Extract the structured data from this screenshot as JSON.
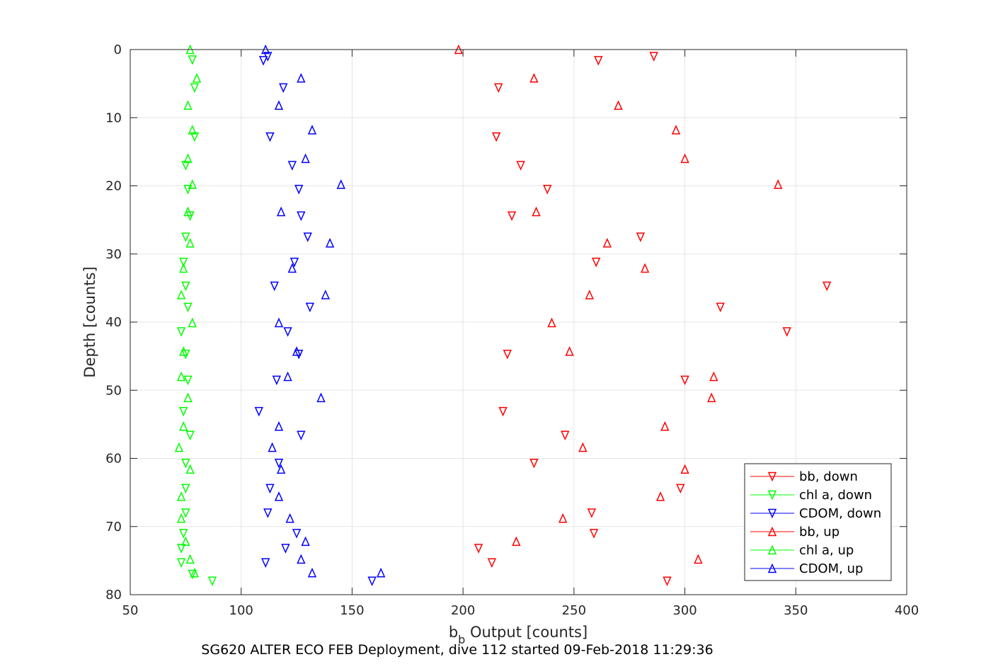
{
  "chart_data": {
    "type": "scatter",
    "x_axis": {
      "label_main": "b",
      "label_sub": "b",
      "label_rest": " Output [counts]",
      "lim": [
        50,
        400
      ],
      "ticks": [
        50,
        100,
        150,
        200,
        250,
        300,
        350,
        400
      ]
    },
    "y_axis": {
      "label": "Depth [counts]",
      "lim": [
        0,
        80
      ],
      "reversed": true,
      "ticks": [
        0,
        10,
        20,
        30,
        40,
        50,
        60,
        70,
        80
      ]
    },
    "caption": "SG620 ALTER ECO FEB Deployment, dive 112 started 09-Feb-2018 11:29:36",
    "grid": true,
    "legend_position": "bottom-right",
    "series": [
      {
        "name": "bb, down",
        "color": "#ff0000",
        "marker": "triangle-down",
        "points": [
          [
            286,
            1
          ],
          [
            261,
            1.6
          ],
          [
            216,
            5.6
          ],
          [
            215,
            12.8
          ],
          [
            226,
            17
          ],
          [
            238,
            20.5
          ],
          [
            222,
            24.4
          ],
          [
            280,
            27.5
          ],
          [
            260,
            31.2
          ],
          [
            364,
            34.7
          ],
          [
            316,
            37.8
          ],
          [
            346,
            41.4
          ],
          [
            220,
            44.7
          ],
          [
            300,
            48.5
          ],
          [
            218,
            53.1
          ],
          [
            246,
            56.6
          ],
          [
            232,
            60.7
          ],
          [
            298,
            64.4
          ],
          [
            258,
            68
          ],
          [
            259,
            71
          ],
          [
            207,
            73.2
          ],
          [
            213,
            75.3
          ],
          [
            292,
            78
          ]
        ]
      },
      {
        "name": "chl a, down",
        "color": "#00ff00",
        "marker": "triangle-down",
        "points": [
          [
            78,
            1.5
          ],
          [
            79,
            5.6
          ],
          [
            79,
            12.8
          ],
          [
            75,
            17
          ],
          [
            76,
            20.5
          ],
          [
            77,
            24.4
          ],
          [
            75,
            27.5
          ],
          [
            74,
            31.2
          ],
          [
            75,
            34.7
          ],
          [
            76,
            37.8
          ],
          [
            73,
            41.4
          ],
          [
            75,
            44.7
          ],
          [
            76,
            48.5
          ],
          [
            74,
            53.1
          ],
          [
            77,
            56.6
          ],
          [
            75,
            60.7
          ],
          [
            75,
            64.4
          ],
          [
            75,
            68
          ],
          [
            74,
            71
          ],
          [
            73,
            73.2
          ],
          [
            73,
            75.3
          ],
          [
            78,
            77
          ],
          [
            87,
            78
          ]
        ]
      },
      {
        "name": "CDOM, down",
        "color": "#0000ff",
        "marker": "triangle-down",
        "points": [
          [
            112,
            1
          ],
          [
            110,
            1.6
          ],
          [
            119,
            5.6
          ],
          [
            113,
            12.8
          ],
          [
            123,
            17
          ],
          [
            126,
            20.5
          ],
          [
            127,
            24.4
          ],
          [
            130,
            27.5
          ],
          [
            124,
            31.2
          ],
          [
            115,
            34.7
          ],
          [
            131,
            37.8
          ],
          [
            121,
            41.4
          ],
          [
            126,
            44.7
          ],
          [
            116,
            48.5
          ],
          [
            108,
            53.1
          ],
          [
            127,
            56.6
          ],
          [
            117,
            60.7
          ],
          [
            113,
            64.4
          ],
          [
            112,
            68
          ],
          [
            125,
            71
          ],
          [
            120,
            73.2
          ],
          [
            111,
            75.3
          ],
          [
            159,
            78
          ]
        ]
      },
      {
        "name": "bb, up",
        "color": "#ff0000",
        "marker": "triangle-up",
        "points": [
          [
            198,
            0
          ],
          [
            232,
            4.2
          ],
          [
            270,
            8.2
          ],
          [
            296,
            11.8
          ],
          [
            300,
            16
          ],
          [
            342,
            19.8
          ],
          [
            233,
            23.8
          ],
          [
            265,
            28.4
          ],
          [
            282,
            32.1
          ],
          [
            257,
            36
          ],
          [
            240,
            40.1
          ],
          [
            248,
            44.3
          ],
          [
            313,
            48
          ],
          [
            312,
            51.1
          ],
          [
            291,
            55.3
          ],
          [
            254,
            58.4
          ],
          [
            300,
            61.6
          ],
          [
            289,
            65.6
          ],
          [
            245,
            68.8
          ],
          [
            224,
            72.2
          ],
          [
            306,
            74.8
          ]
        ]
      },
      {
        "name": "chl a, up",
        "color": "#00ff00",
        "marker": "triangle-up",
        "points": [
          [
            77,
            0
          ],
          [
            80,
            4.2
          ],
          [
            76,
            8.2
          ],
          [
            78,
            11.8
          ],
          [
            76,
            16
          ],
          [
            78,
            19.8
          ],
          [
            76,
            23.8
          ],
          [
            77,
            28.4
          ],
          [
            74,
            32.1
          ],
          [
            73,
            36
          ],
          [
            78,
            40.1
          ],
          [
            74,
            44.3
          ],
          [
            73,
            48
          ],
          [
            76,
            51.1
          ],
          [
            74,
            55.3
          ],
          [
            72,
            58.4
          ],
          [
            77,
            61.6
          ],
          [
            73,
            65.6
          ],
          [
            73,
            68.8
          ],
          [
            75,
            72.2
          ],
          [
            77,
            74.8
          ],
          [
            79,
            76.8
          ]
        ]
      },
      {
        "name": "CDOM, up",
        "color": "#0000ff",
        "marker": "triangle-up",
        "points": [
          [
            111,
            0
          ],
          [
            127,
            4.2
          ],
          [
            117,
            8.2
          ],
          [
            132,
            11.8
          ],
          [
            129,
            16
          ],
          [
            145,
            19.8
          ],
          [
            118,
            23.8
          ],
          [
            140,
            28.4
          ],
          [
            123,
            32.1
          ],
          [
            138,
            36
          ],
          [
            117,
            40.1
          ],
          [
            125,
            44.3
          ],
          [
            121,
            48
          ],
          [
            136,
            51.1
          ],
          [
            117,
            55.3
          ],
          [
            114,
            58.4
          ],
          [
            118,
            61.6
          ],
          [
            117,
            65.6
          ],
          [
            122,
            68.8
          ],
          [
            129,
            72.2
          ],
          [
            127,
            74.8
          ],
          [
            132,
            76.8
          ],
          [
            163,
            76.8
          ]
        ]
      }
    ]
  }
}
